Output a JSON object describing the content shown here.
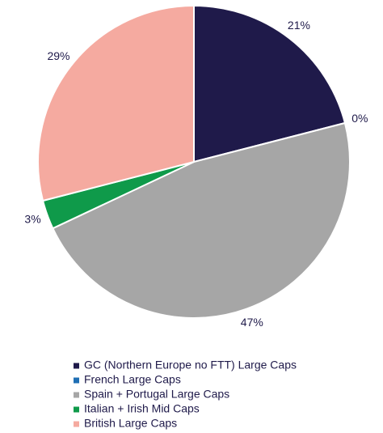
{
  "chart_data": {
    "type": "pie",
    "categories": [
      "GC (Northern Europe no FTT) Large Caps",
      "French Large Caps",
      "Spain + Portugal Large Caps",
      "Italian + Irish Mid Caps",
      "British Large Caps"
    ],
    "values": [
      21,
      0,
      47,
      3,
      29
    ],
    "value_labels": [
      "21%",
      "0%",
      "47%",
      "3%",
      "29%"
    ],
    "colors": [
      "#1f1a4a",
      "#1f6fb4",
      "#a6a6a6",
      "#0f9a4a",
      "#f5aaa0"
    ]
  }
}
